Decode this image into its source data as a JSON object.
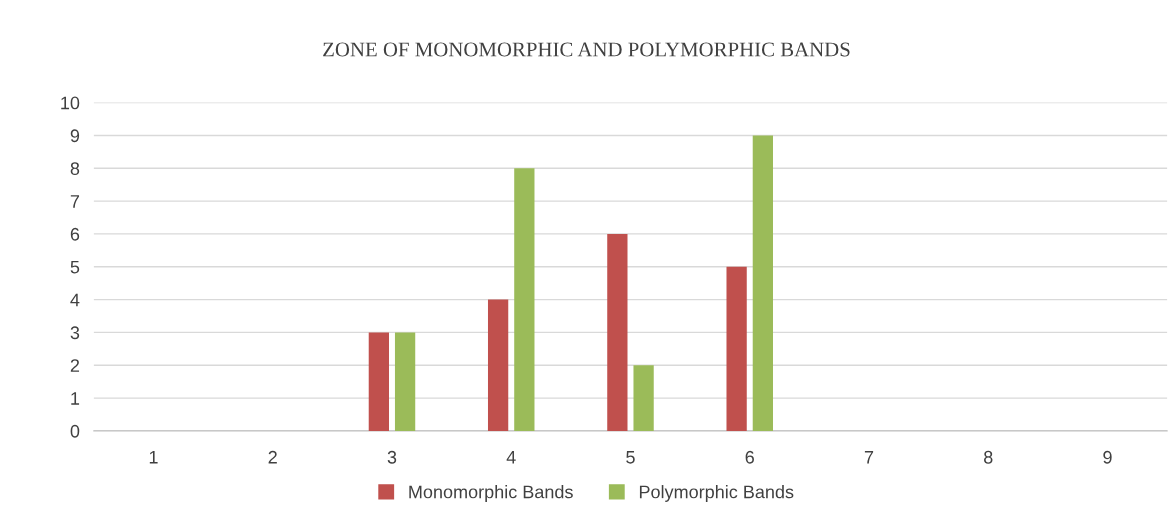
{
  "chart_data": {
    "type": "bar",
    "title": "ZONE OF MONOMORPHIC AND POLYMORPHIC BANDS",
    "categories": [
      "1",
      "2",
      "3",
      "4",
      "5",
      "6",
      "7",
      "8",
      "9"
    ],
    "series": [
      {
        "name": "Monomorphic Bands",
        "color": "#c0504d",
        "values": [
          0,
          0,
          3,
          4,
          6,
          5,
          0,
          0,
          0
        ]
      },
      {
        "name": "Polymorphic Bands",
        "color": "#9bbb59",
        "values": [
          0,
          0,
          3,
          8,
          2,
          9,
          0,
          0,
          0
        ]
      }
    ],
    "ylim": [
      0,
      10
    ],
    "yticks": [
      0,
      1,
      2,
      3,
      4,
      5,
      6,
      7,
      8,
      9,
      10
    ],
    "grid": "y",
    "legend": "bottom"
  }
}
